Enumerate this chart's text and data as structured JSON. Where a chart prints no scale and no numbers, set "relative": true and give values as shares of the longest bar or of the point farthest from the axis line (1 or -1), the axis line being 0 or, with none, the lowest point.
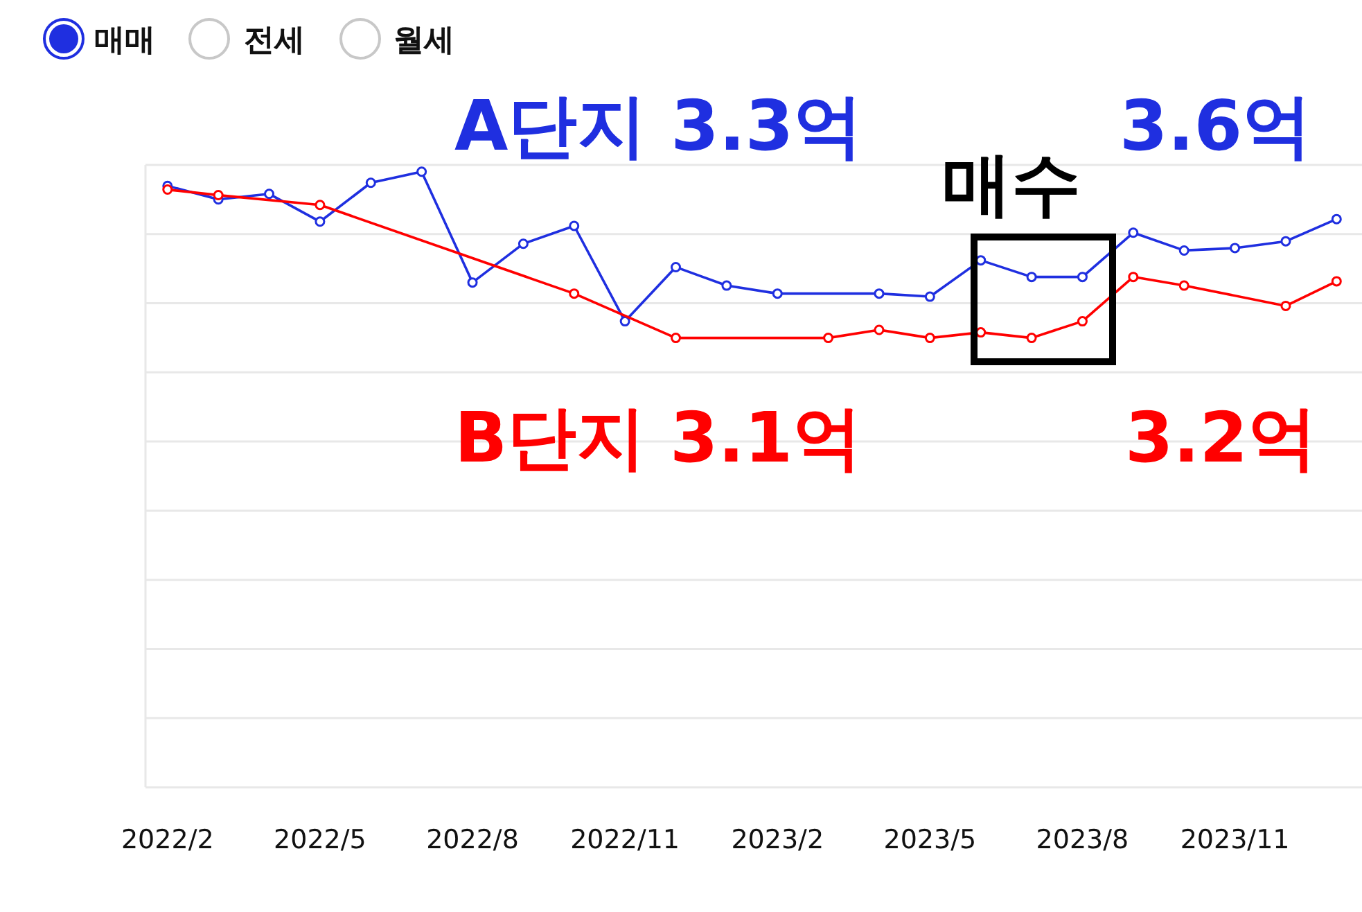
{
  "chart_data": {
    "type": "line",
    "relative": true,
    "grid": "y",
    "marker": "circle",
    "line_style": "solid",
    "tick_labels": "x",
    "xlim": [
      "2022-01-18",
      "2024-01-16"
    ],
    "xticks": [
      {
        "value": "2022-02",
        "label": "2022/2"
      },
      {
        "value": "2022-05",
        "label": "2022/5"
      },
      {
        "value": "2022-08",
        "label": "2022/8"
      },
      {
        "value": "2022-11",
        "label": "2022/11"
      },
      {
        "value": "2023-02",
        "label": "2023/2"
      },
      {
        "value": "2023-05",
        "label": "2023/5"
      },
      {
        "value": "2023-08",
        "label": "2023/8"
      },
      {
        "value": "2023-11",
        "label": "2023/11"
      }
    ],
    "annotations": [
      "매매",
      "전세",
      "월세",
      "A단지 3.3억",
      "3.6억",
      "매수",
      "B단지 3.1억",
      "3.2억"
    ],
    "series": [
      {
        "color": "#1f2fe0",
        "x": [
          "2022-02",
          "2022-03",
          "2022-04",
          "2022-05",
          "2022-06",
          "2022-07",
          "2022-08",
          "2022-09",
          "2022-10",
          "2022-11",
          "2022-12",
          "2023-01",
          "2023-02",
          "2023-04",
          "2023-05",
          "2023-06",
          "2023-07",
          "2023-08",
          "2023-09",
          "2023-10",
          "2023-11",
          "2023-12",
          "2024-01"
        ],
        "values": [
          0.977,
          0.955,
          0.964,
          0.919,
          0.982,
          1,
          0.82,
          0.883,
          0.912,
          0.757,
          0.845,
          0.815,
          0.802,
          0.802,
          0.797,
          0.856,
          0.829,
          0.829,
          0.901,
          0.872,
          0.876,
          0.887,
          0.923
        ]
      },
      {
        "color": "#ff0000",
        "x": [
          "2022-02",
          "2022-03",
          "2022-05",
          "2022-10",
          "2022-12",
          "2023-03",
          "2023-04",
          "2023-05",
          "2023-06",
          "2023-07",
          "2023-08",
          "2023-09",
          "2023-10",
          "2023-12",
          "2024-01"
        ],
        "values": [
          0.971,
          0.962,
          0.946,
          0.802,
          0.73,
          0.73,
          0.743,
          0.73,
          0.739,
          0.73,
          0.757,
          0.829,
          0.815,
          0.782,
          0.822
        ]
      }
    ]
  }
}
